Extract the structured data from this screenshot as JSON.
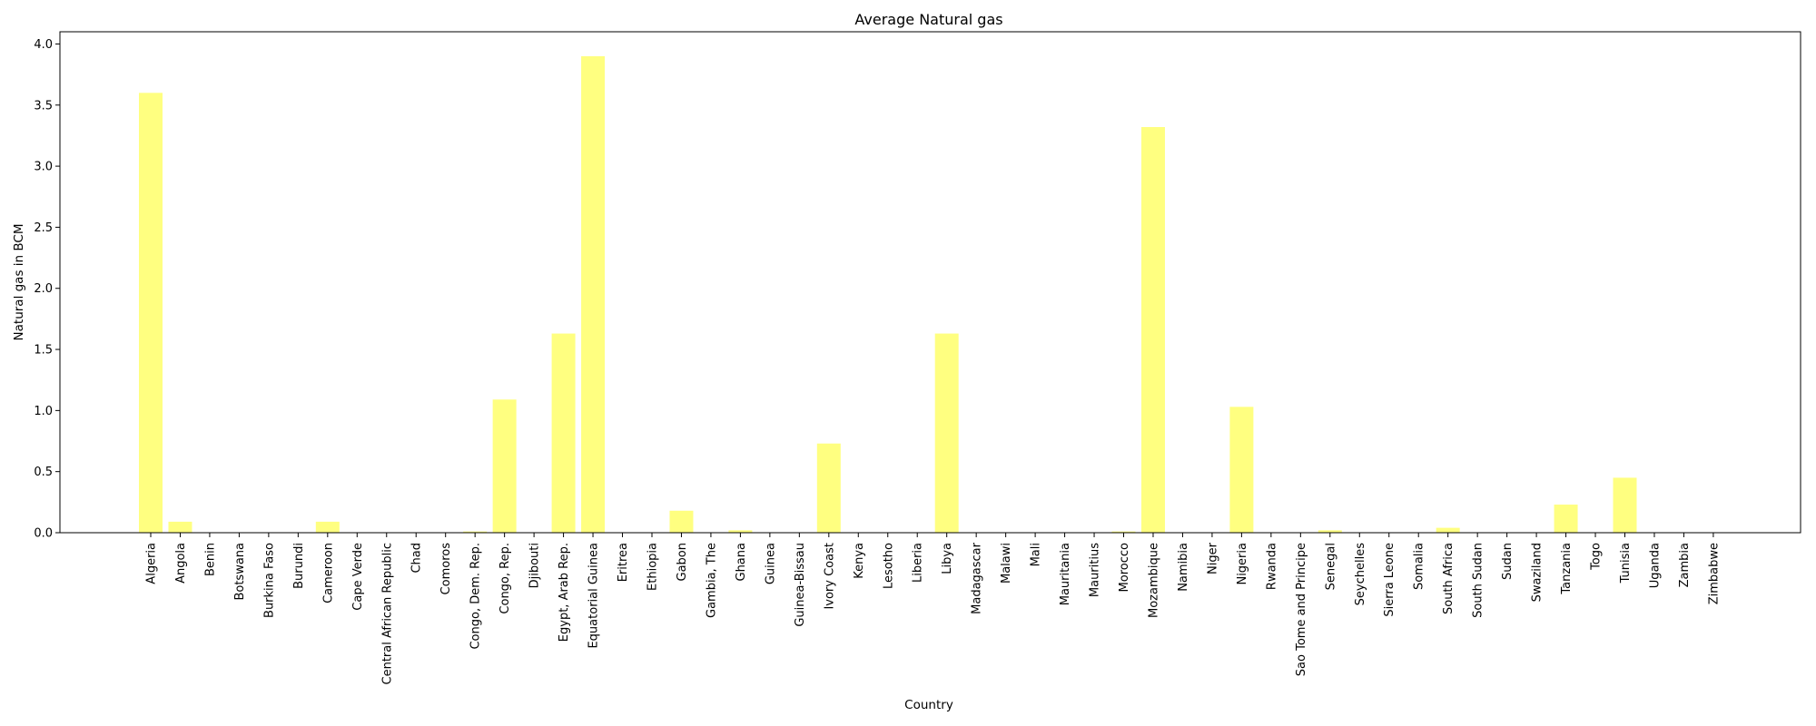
{
  "chart_data": {
    "type": "bar",
    "title": "Average Natural gas",
    "xlabel": "Country",
    "ylabel": "Natural gas in BCM",
    "ylim": [
      0,
      4.1
    ],
    "yticks": [
      0.0,
      0.5,
      1.0,
      1.5,
      2.0,
      2.5,
      3.0,
      3.5,
      4.0
    ],
    "ytick_labels": [
      "0.0",
      "0.5",
      "1.0",
      "1.5",
      "2.0",
      "2.5",
      "3.0",
      "3.5",
      "4.0"
    ],
    "grid": false,
    "bar_color": "#ffff80",
    "categories": [
      "Algeria",
      "Angola",
      "Benin",
      "Botswana",
      "Burkina Faso",
      "Burundi",
      "Cameroon",
      "Cape Verde",
      "Central African Republic",
      "Chad",
      "Comoros",
      "Congo, Dem. Rep.",
      "Congo, Rep.",
      "Djibouti",
      "Egypt, Arab Rep.",
      "Equatorial Guinea",
      "Eritrea",
      "Ethiopia",
      "Gabon",
      "Gambia, The",
      "Ghana",
      "Guinea",
      "Guinea-Bissau",
      "Ivory Coast",
      "Kenya",
      "Lesotho",
      "Liberia",
      "Libya",
      "Madagascar",
      "Malawi",
      "Mali",
      "Mauritania",
      "Mauritius",
      "Morocco",
      "Mozambique",
      "Namibia",
      "Niger",
      "Nigeria",
      "Rwanda",
      "Sao Tome and Principe",
      "Senegal",
      "Seychelles",
      "Sierra Leone",
      "Somalia",
      "South Africa",
      "South Sudan",
      "Sudan",
      "Swaziland",
      "Tanzania",
      "Togo",
      "Tunisia",
      "Uganda",
      "Zambia",
      "Zimbabwe"
    ],
    "values": [
      3.6,
      0.09,
      0,
      0,
      0,
      0,
      0.09,
      0,
      0,
      0,
      0,
      0.01,
      1.09,
      0,
      1.63,
      3.9,
      0,
      0,
      0.18,
      0,
      0.02,
      0,
      0,
      0.73,
      0,
      0,
      0,
      1.63,
      0,
      0,
      0,
      0,
      0,
      0.01,
      3.32,
      0,
      0,
      1.03,
      0,
      0,
      0.02,
      0,
      0,
      0,
      0.04,
      0,
      0,
      0,
      0.23,
      0,
      0.45,
      0,
      0,
      0
    ]
  }
}
